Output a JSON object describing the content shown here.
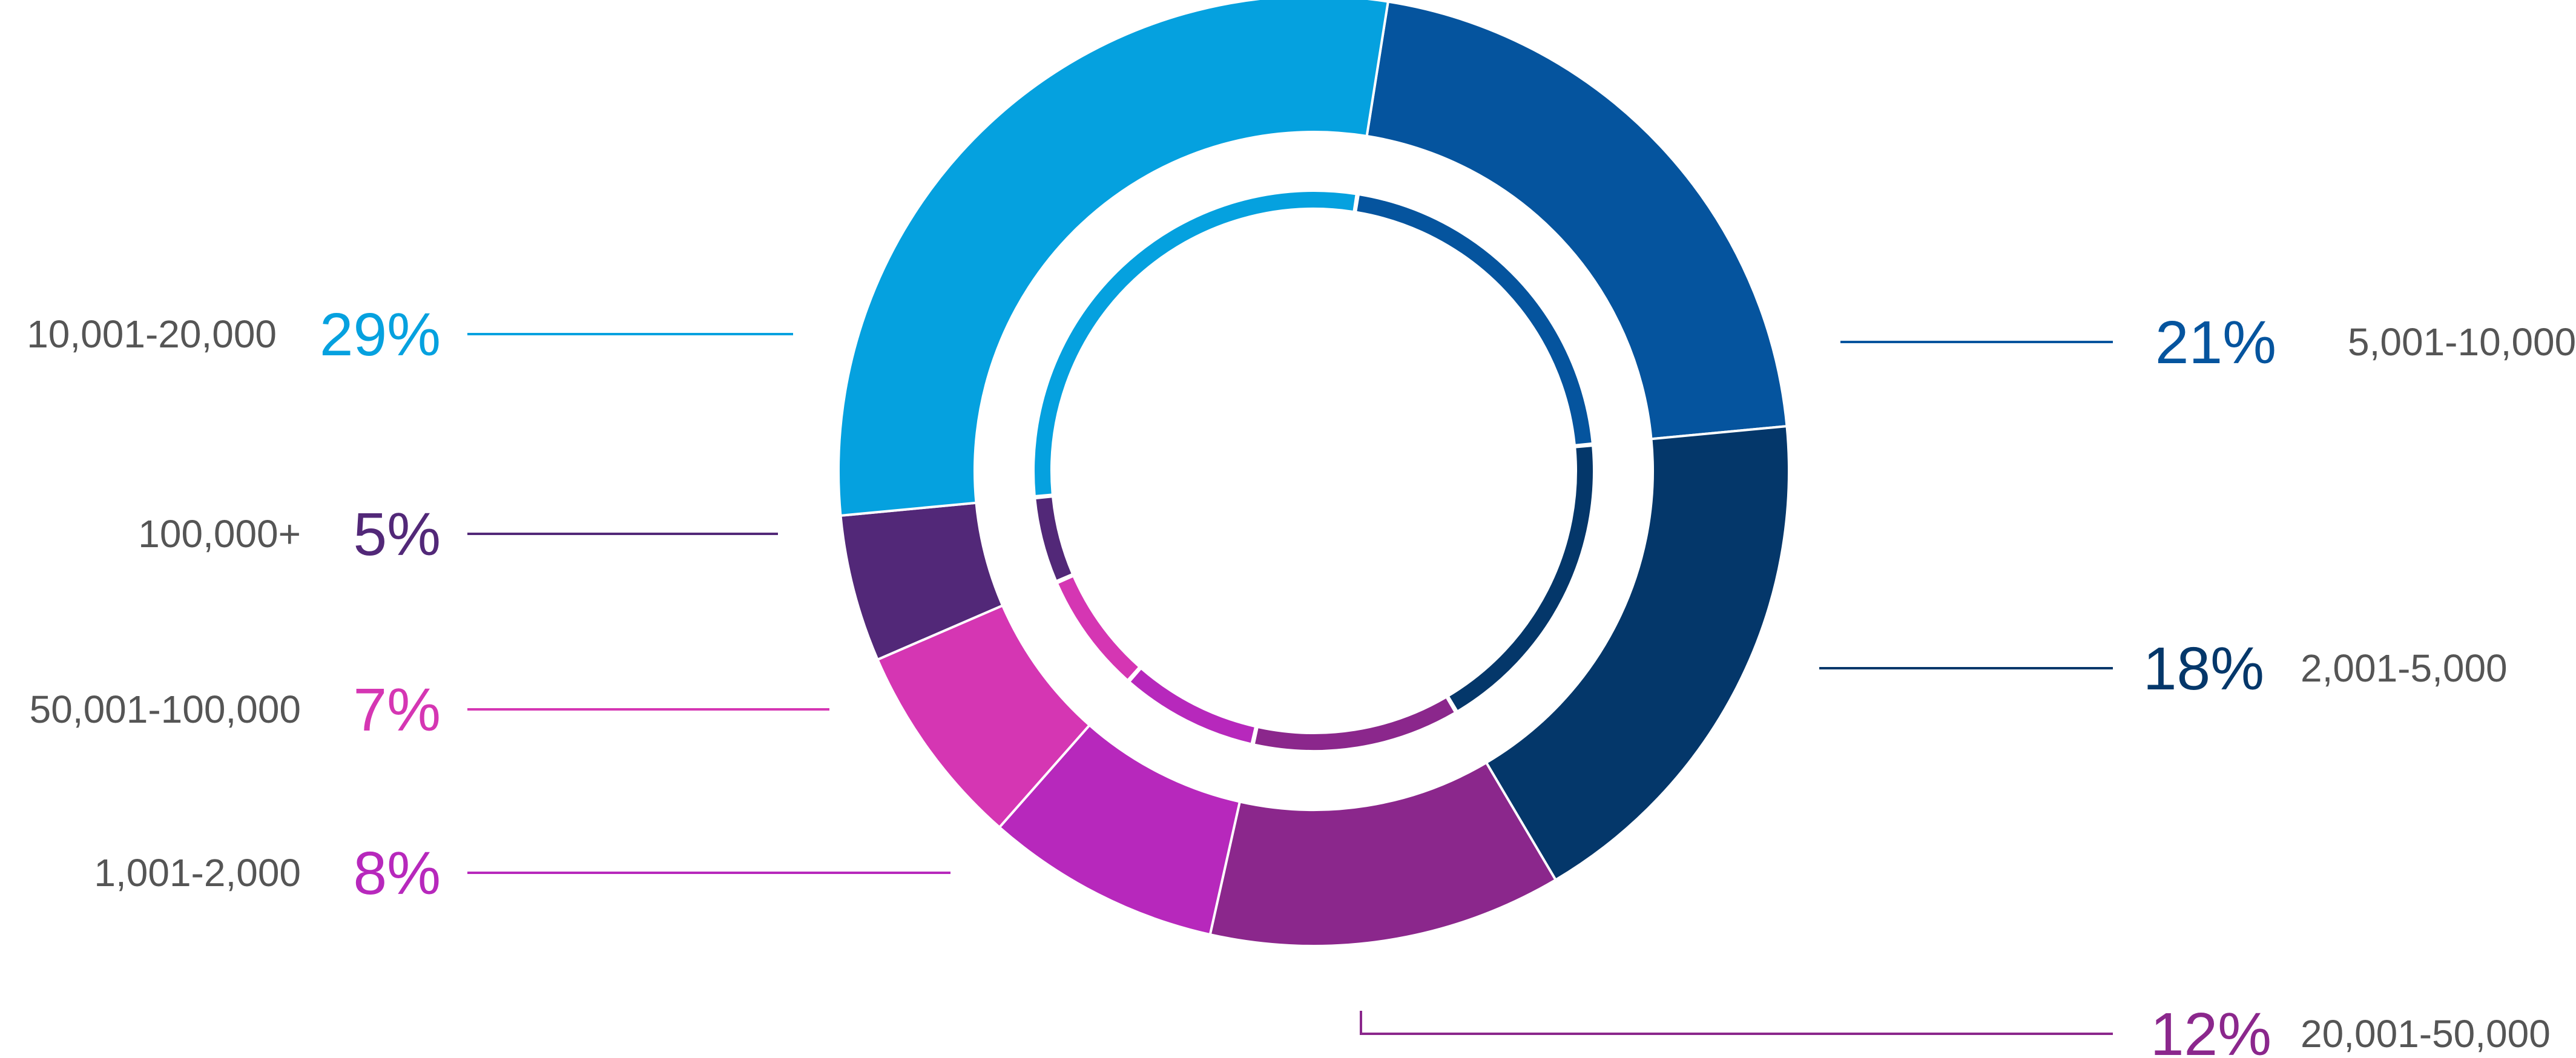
{
  "chart_data": {
    "type": "pie",
    "style": "double-donut",
    "slices": [
      {
        "label": "5,001-10,000",
        "value": 21,
        "pct_label": "21%",
        "color": "#05549E"
      },
      {
        "label": "2,001-5,000",
        "value": 18,
        "pct_label": "18%",
        "color": "#04376A"
      },
      {
        "label": "20,001-50,000",
        "value": 12,
        "pct_label": "12%",
        "color": "#8B278C"
      },
      {
        "label": "1,001-2,000",
        "value": 8,
        "pct_label": "8%",
        "color": "#B728BC"
      },
      {
        "label": "50,001-100,000",
        "value": 7,
        "pct_label": "7%",
        "color": "#D536B3"
      },
      {
        "label": "100,000+",
        "value": 5,
        "pct_label": "5%",
        "color": "#522878"
      },
      {
        "label": "10,001-20,000",
        "value": 29,
        "pct_label": "29%",
        "color": "#05A1DF"
      }
    ],
    "legend": "callout labels beside slices",
    "title": "",
    "xlabel": "",
    "ylabel": ""
  }
}
